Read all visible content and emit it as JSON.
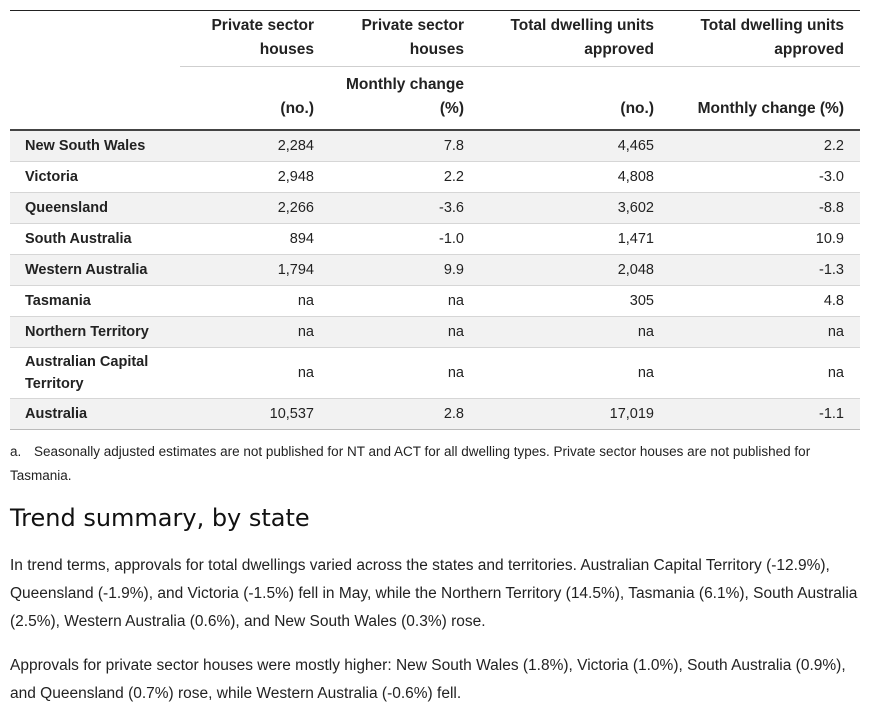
{
  "table": {
    "headers": {
      "col1_top": "Private sector houses",
      "col2_top": "Private sector houses",
      "col3_top": "Total dwelling units approved",
      "col4_top": "Total dwelling units approved",
      "col1_sub": "(no.)",
      "col2_sub": "Monthly change (%)",
      "col3_sub": "(no.)",
      "col4_sub": "Monthly change (%)"
    },
    "rows": [
      {
        "state": "New South Wales",
        "psh_no": "2,284",
        "psh_chg": "7.8",
        "tdu_no": "4,465",
        "tdu_chg": "2.2"
      },
      {
        "state": "Victoria",
        "psh_no": "2,948",
        "psh_chg": "2.2",
        "tdu_no": "4,808",
        "tdu_chg": "-3.0"
      },
      {
        "state": "Queensland",
        "psh_no": "2,266",
        "psh_chg": "-3.6",
        "tdu_no": "3,602",
        "tdu_chg": "-8.8"
      },
      {
        "state": "South Australia",
        "psh_no": "894",
        "psh_chg": "-1.0",
        "tdu_no": "1,471",
        "tdu_chg": "10.9"
      },
      {
        "state": "Western Australia",
        "psh_no": "1,794",
        "psh_chg": "9.9",
        "tdu_no": "2,048",
        "tdu_chg": "-1.3"
      },
      {
        "state": "Tasmania",
        "psh_no": "na",
        "psh_chg": "na",
        "tdu_no": "305",
        "tdu_chg": "4.8"
      },
      {
        "state": "Northern Territory",
        "psh_no": "na",
        "psh_chg": "na",
        "tdu_no": "na",
        "tdu_chg": "na"
      },
      {
        "state": "Australian Capital Territory",
        "psh_no": "na",
        "psh_chg": "na",
        "tdu_no": "na",
        "tdu_chg": "na"
      },
      {
        "state": "Australia",
        "psh_no": "10,537",
        "psh_chg": "2.8",
        "tdu_no": "17,019",
        "tdu_chg": "-1.1"
      }
    ]
  },
  "footnote": {
    "marker": "a.",
    "text": "Seasonally adjusted estimates are not published for NT and ACT for all dwelling types. Private sector houses are not published for Tasmania."
  },
  "section_heading": "Trend summary, by state",
  "paragraphs": {
    "p1": "In trend terms, approvals for total dwellings varied across the states and territories. Australian Capital Territory (-12.9%), Queensland (-1.9%), and Victoria (-1.5%) fell in May, while the Northern Territory (14.5%), Tasmania (6.1%), South Australia (2.5%), Western Australia (0.6%), and New South Wales (0.3%) rose.",
    "p2": "Approvals for private sector houses were mostly higher: New South Wales (1.8%), Victoria (1.0%), South Australia (0.9%), and Queensland (0.7%) rose, while Western Australia (-0.6%) fell."
  }
}
